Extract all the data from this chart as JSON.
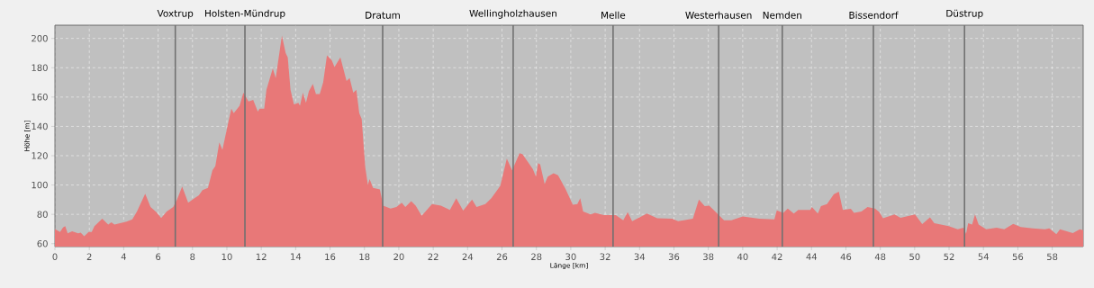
{
  "chart_data": {
    "type": "area",
    "xlabel": "Länge [km]",
    "ylabel": "Höhe [m]",
    "xlim": [
      0,
      59.8
    ],
    "ylim": [
      58,
      209
    ],
    "xticks": [
      0,
      2,
      4,
      6,
      8,
      10,
      12,
      14,
      16,
      18,
      20,
      22,
      24,
      26,
      28,
      30,
      32,
      34,
      36,
      38,
      40,
      42,
      44,
      46,
      48,
      50,
      52,
      54,
      56,
      58
    ],
    "yticks": [
      60,
      80,
      100,
      120,
      140,
      160,
      180,
      200
    ],
    "grid": true,
    "series": [
      {
        "color": "#e87878",
        "x": [
          0,
          0.3,
          0.47,
          0.6,
          0.74,
          1.0,
          1.35,
          1.5,
          1.7,
          1.96,
          2.14,
          2.3,
          2.75,
          3.1,
          3.28,
          3.46,
          4.16,
          4.5,
          4.77,
          5.25,
          5.56,
          5.9,
          6.18,
          6.5,
          6.88,
          7.1,
          7.4,
          7.75,
          8.0,
          8.37,
          8.58,
          8.9,
          9.16,
          9.33,
          9.56,
          9.74,
          10.03,
          10.26,
          10.4,
          10.74,
          10.96,
          11.26,
          11.53,
          11.8,
          11.9,
          12.17,
          12.3,
          12.67,
          12.84,
          13.2,
          13.42,
          13.54,
          13.7,
          13.9,
          14.16,
          14.25,
          14.42,
          14.6,
          14.77,
          15.0,
          15.18,
          15.4,
          15.6,
          15.82,
          16.1,
          16.26,
          16.6,
          16.96,
          17.14,
          17.35,
          17.53,
          17.7,
          17.84,
          18.05,
          18.2,
          18.3,
          18.5,
          18.9,
          19.09,
          19.52,
          19.86,
          20.17,
          20.38,
          20.72,
          20.98,
          21.33,
          21.93,
          22.45,
          22.97,
          23.34,
          23.74,
          24.26,
          24.52,
          25.03,
          25.38,
          25.9,
          26.28,
          26.59,
          27.02,
          27.19,
          27.79,
          27.97,
          28.1,
          28.22,
          28.48,
          28.66,
          29.0,
          29.26,
          29.69,
          30.12,
          30.38,
          30.55,
          30.72,
          31.16,
          31.41,
          31.93,
          32.62,
          33.05,
          33.31,
          33.57,
          34.43,
          35.03,
          35.9,
          36.24,
          37.1,
          37.45,
          37.79,
          38.05,
          38.48,
          38.91,
          39.34,
          40.0,
          40.96,
          41.84,
          41.98,
          42.36,
          42.62,
          42.97,
          43.23,
          43.93,
          44.02,
          44.37,
          44.55,
          44.9,
          45.3,
          45.59,
          45.82,
          46.29,
          46.47,
          46.9,
          47.26,
          47.69,
          47.95,
          48.16,
          48.83,
          49.18,
          50.02,
          50.44,
          50.89,
          51.14,
          51.98,
          52.5,
          52.85,
          52.99,
          53.11,
          53.34,
          53.51,
          53.72,
          54.16,
          54.77,
          55.21,
          55.73,
          56.17,
          56.87,
          57.57,
          57.83,
          58.24,
          58.45,
          59.2,
          59.6,
          59.8
        ],
        "values": [
          70,
          68,
          71,
          72,
          67,
          68.5,
          67,
          67.5,
          65,
          68,
          68,
          72,
          77,
          73,
          74.5,
          73,
          75,
          76.5,
          82,
          94,
          85,
          81.5,
          77.5,
          82,
          85,
          90,
          99,
          88,
          90,
          93,
          96.5,
          98,
          110,
          113,
          129,
          124,
          140,
          152,
          149,
          154,
          163,
          157,
          158,
          150,
          152,
          152,
          165,
          179.5,
          173,
          202,
          190,
          187,
          165,
          155,
          156,
          154,
          163,
          156,
          164,
          169,
          162,
          162,
          170,
          188.5,
          185,
          180.5,
          187,
          171,
          173,
          163,
          165,
          149,
          145,
          112,
          100,
          104,
          98,
          97,
          86,
          84,
          85,
          88,
          85,
          89,
          86,
          79,
          87,
          86,
          83,
          91,
          82.5,
          90,
          85,
          87,
          91,
          99.5,
          118,
          110,
          121.7,
          121,
          111,
          105.7,
          115,
          114,
          100.6,
          105.7,
          108,
          106.7,
          97.5,
          86.6,
          87,
          91,
          82,
          80,
          81,
          79.5,
          79.5,
          76,
          81.5,
          75.4,
          80.5,
          77.4,
          77,
          75.4,
          77,
          90,
          85.6,
          86,
          81,
          76,
          76,
          78.6,
          77,
          76.6,
          82.7,
          81,
          84,
          80.5,
          83,
          83,
          85,
          80.5,
          85.6,
          87,
          93.8,
          95.5,
          83,
          83.8,
          81,
          82,
          85,
          84,
          81.5,
          77.4,
          80,
          77.6,
          80,
          73.3,
          78,
          74,
          71.9,
          69.8,
          70.9,
          66.8,
          74,
          73,
          80,
          73,
          69.8,
          70.9,
          69.8,
          73.5,
          71.3,
          70.5,
          69.8,
          70.5,
          66.4,
          69.8,
          67.2,
          69.8,
          69.2
        ]
      }
    ],
    "ref_lines": [
      {
        "axis": "x",
        "value": 7.0,
        "label": "Voxtrup",
        "color": "#707070"
      },
      {
        "axis": "x",
        "value": 11.05,
        "label": "Holsten-Mündrup",
        "color": "#707070"
      },
      {
        "axis": "x",
        "value": 19.06,
        "label": "Dratum",
        "color": "#707070"
      },
      {
        "axis": "x",
        "value": 26.65,
        "label": "Wellingholzhausen",
        "color": "#707070"
      },
      {
        "axis": "x",
        "value": 32.46,
        "label": "Melle",
        "color": "#707070"
      },
      {
        "axis": "x",
        "value": 38.6,
        "label": "Westerhausen",
        "color": "#707070"
      },
      {
        "axis": "x",
        "value": 42.3,
        "label": "Nemden",
        "color": "#707070"
      },
      {
        "axis": "x",
        "value": 47.6,
        "label": "Bissendorf",
        "color": "#707070"
      },
      {
        "axis": "x",
        "value": 52.9,
        "label": "Düstrup",
        "color": "#707070"
      }
    ]
  }
}
